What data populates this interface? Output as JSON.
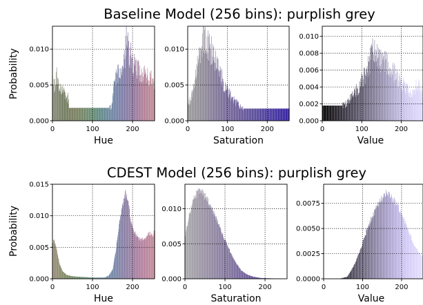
{
  "figure": {
    "rows": [
      {
        "title": "Baseline Model (256 bins): purplish grey",
        "ylabel": "Probability",
        "panels": [
          {
            "key": "base_hue",
            "xlabel": "Hue",
            "ylim": [
              0,
              0.0132
            ],
            "yticks": [
              "0.000",
              "0.005",
              "0.010"
            ],
            "ytick_values": [
              0,
              0.005,
              0.01
            ],
            "xticks": [
              "0",
              "100",
              "200"
            ],
            "xtick_values": [
              0,
              100,
              200
            ]
          },
          {
            "key": "base_sat",
            "xlabel": "Saturation",
            "ylim": [
              0,
              0.0132
            ],
            "yticks": [
              "0.000",
              "0.005",
              "0.010"
            ],
            "ytick_values": [
              0,
              0.005,
              0.01
            ],
            "xticks": [
              "0",
              "100",
              "200"
            ],
            "xtick_values": [
              0,
              100,
              200
            ]
          },
          {
            "key": "base_val",
            "xlabel": "Value",
            "ylim": [
              0,
              0.0112
            ],
            "yticks": [
              "0.000",
              "0.002",
              "0.004",
              "0.006",
              "0.008",
              "0.010"
            ],
            "ytick_values": [
              0,
              0.002,
              0.004,
              0.006,
              0.008,
              0.01
            ],
            "xticks": [
              "0",
              "100",
              "200"
            ],
            "xtick_values": [
              0,
              100,
              200
            ]
          }
        ]
      },
      {
        "title": "CDEST Model (256 bins): purplish grey",
        "ylabel": "Probability",
        "panels": [
          {
            "key": "cdest_hue",
            "xlabel": "Hue",
            "ylim": [
              0,
              0.015
            ],
            "yticks": [
              "0.000",
              "0.005",
              "0.010",
              "0.015"
            ],
            "ytick_values": [
              0,
              0.005,
              0.01,
              0.015
            ],
            "xticks": [
              "0",
              "100",
              "200"
            ],
            "xtick_values": [
              0,
              100,
              200
            ]
          },
          {
            "key": "cdest_sat",
            "xlabel": "Saturation",
            "ylim": [
              0,
              0.0135
            ],
            "yticks": [
              "0.000",
              "0.005",
              "0.010"
            ],
            "ytick_values": [
              0,
              0.005,
              0.01
            ],
            "xticks": [
              "0",
              "100",
              "200"
            ],
            "xtick_values": [
              0,
              100,
              200
            ]
          },
          {
            "key": "cdest_val",
            "xlabel": "Value",
            "ylim": [
              0,
              0.0094
            ],
            "yticks": [
              "0.0000",
              "0.0025",
              "0.0050",
              "0.0075"
            ],
            "ytick_values": [
              0,
              0.0025,
              0.005,
              0.0075
            ],
            "xticks": [
              "0",
              "100",
              "200"
            ],
            "xtick_values": [
              0,
              100,
              200
            ]
          }
        ]
      }
    ]
  },
  "chart_data": [
    {
      "type": "bar",
      "key": "base_hue",
      "title": "Baseline Model (256 bins): purplish grey",
      "xlabel": "Hue",
      "ylabel": "Probability",
      "xlim": [
        0,
        255
      ],
      "ylim": [
        0,
        0.0132
      ],
      "grid": true,
      "bins": 256,
      "profile_x": [
        0,
        5,
        10,
        20,
        30,
        38,
        42,
        50,
        60,
        80,
        100,
        120,
        140,
        148,
        152,
        160,
        170,
        180,
        185,
        190,
        195,
        200,
        210,
        220,
        230,
        240,
        250,
        255
      ],
      "profile_y": [
        0.0052,
        0.005,
        0.0061,
        0.0045,
        0.004,
        0.0032,
        0.0018,
        0.0018,
        0.0018,
        0.0018,
        0.0018,
        0.0018,
        0.0018,
        0.002,
        0.0045,
        0.0065,
        0.0075,
        0.0085,
        0.0118,
        0.0095,
        0.0092,
        0.008,
        0.0072,
        0.0068,
        0.0066,
        0.0062,
        0.0055,
        0.005
      ],
      "colors": [
        "#8a8a78",
        "#6f7a5e",
        "#7a7e5e",
        "#6d8a6a",
        "#5e8a7e",
        "#6a86a0",
        "#7a7ea8",
        "#8e78a0",
        "#b07e96",
        "#c08a96"
      ]
    },
    {
      "type": "bar",
      "key": "base_sat",
      "xlabel": "Saturation",
      "xlim": [
        0,
        255
      ],
      "ylim": [
        0,
        0.0132
      ],
      "grid": true,
      "bins": 256,
      "profile_x": [
        0,
        10,
        20,
        30,
        35,
        40,
        45,
        50,
        55,
        60,
        70,
        80,
        90,
        100,
        110,
        120,
        130,
        140,
        255
      ],
      "profile_y": [
        0.0022,
        0.0035,
        0.0068,
        0.0095,
        0.0113,
        0.0116,
        0.0112,
        0.0108,
        0.0102,
        0.0098,
        0.0082,
        0.0068,
        0.0052,
        0.0042,
        0.0032,
        0.0026,
        0.0021,
        0.0017,
        0.0017
      ],
      "colors": [
        "#9a9a98",
        "#8e8898",
        "#7a6e98",
        "#6a5a98",
        "#574a9a",
        "#44349e",
        "#2e1aa0"
      ]
    },
    {
      "type": "bar",
      "key": "base_val",
      "xlabel": "Value",
      "xlim": [
        0,
        255
      ],
      "ylim": [
        0,
        0.0112
      ],
      "grid": true,
      "bins": 256,
      "profile_x": [
        0,
        20,
        40,
        50,
        60,
        70,
        80,
        90,
        100,
        110,
        120,
        130,
        140,
        150,
        160,
        170,
        180,
        190,
        200,
        210,
        220,
        230,
        240,
        255
      ],
      "profile_y": [
        0.0018,
        0.0018,
        0.0018,
        0.0018,
        0.002,
        0.0026,
        0.0032,
        0.0038,
        0.0048,
        0.0055,
        0.007,
        0.0086,
        0.0078,
        0.0068,
        0.0072,
        0.0065,
        0.0058,
        0.005,
        0.0045,
        0.0038,
        0.0035,
        0.0032,
        0.0046,
        0.003
      ],
      "colors": [
        "#000000",
        "#2a2630",
        "#555062",
        "#807a94",
        "#a8a2c4",
        "#cfc8ee",
        "#e2dcff"
      ]
    },
    {
      "type": "bar",
      "key": "cdest_hue",
      "title": "CDEST Model (256 bins): purplish grey",
      "xlabel": "Hue",
      "ylabel": "Probability",
      "xlim": [
        0,
        255
      ],
      "ylim": [
        0,
        0.015
      ],
      "grid": true,
      "bins": 256,
      "profile_x": [
        0,
        3,
        6,
        12,
        18,
        25,
        35,
        50,
        70,
        100,
        130,
        140,
        150,
        158,
        165,
        172,
        178,
        182,
        186,
        190,
        196,
        203,
        212,
        222,
        232,
        242,
        250,
        255
      ],
      "profile_y": [
        0.0056,
        0.006,
        0.0058,
        0.004,
        0.0022,
        0.0012,
        0.0006,
        0.0004,
        0.0003,
        0.0002,
        0.0002,
        0.0005,
        0.0015,
        0.0045,
        0.008,
        0.0108,
        0.0128,
        0.0135,
        0.0128,
        0.0115,
        0.009,
        0.0075,
        0.0066,
        0.0062,
        0.0065,
        0.0072,
        0.007,
        0.0075
      ],
      "colors": [
        "#9a8a78",
        "#7a8a60",
        "#6a9070",
        "#6a8e92",
        "#7088a8",
        "#8a7ea4",
        "#b07e9e",
        "#c48a96"
      ]
    },
    {
      "type": "bar",
      "key": "cdest_sat",
      "xlabel": "Saturation",
      "xlim": [
        0,
        255
      ],
      "ylim": [
        0,
        0.0135
      ],
      "grid": true,
      "bins": 256,
      "profile_x": [
        0,
        5,
        10,
        20,
        30,
        40,
        50,
        60,
        70,
        80,
        90,
        100,
        110,
        120,
        130,
        140,
        155,
        170,
        190,
        255
      ],
      "profile_y": [
        0.0058,
        0.0075,
        0.009,
        0.0112,
        0.0123,
        0.0125,
        0.0118,
        0.0108,
        0.0095,
        0.0082,
        0.0068,
        0.0055,
        0.0042,
        0.003,
        0.002,
        0.0012,
        0.0006,
        0.0003,
        0.0001,
        0.0
      ],
      "colors": [
        "#a8a8a8",
        "#9890a4",
        "#84789e",
        "#6e5c9c",
        "#5a46a0",
        "#4a34a6"
      ]
    },
    {
      "type": "bar",
      "key": "cdest_val",
      "xlabel": "Value",
      "xlim": [
        0,
        255
      ],
      "ylim": [
        0,
        0.0094
      ],
      "grid": true,
      "bins": 256,
      "profile_x": [
        0,
        40,
        60,
        70,
        80,
        90,
        100,
        110,
        120,
        130,
        140,
        150,
        160,
        170,
        180,
        190,
        200,
        210,
        220,
        230,
        240,
        255
      ],
      "profile_y": [
        0.0,
        0.0,
        0.0002,
        0.0008,
        0.0015,
        0.0025,
        0.0036,
        0.0048,
        0.0058,
        0.0066,
        0.0075,
        0.008,
        0.0085,
        0.0082,
        0.0078,
        0.0072,
        0.0064,
        0.0055,
        0.0045,
        0.0035,
        0.0028,
        0.0022
      ],
      "colors": [
        "#000000",
        "#2e2a36",
        "#5a5468",
        "#86809c",
        "#aea6d2",
        "#d2caf6",
        "#e6e0ff"
      ]
    }
  ]
}
